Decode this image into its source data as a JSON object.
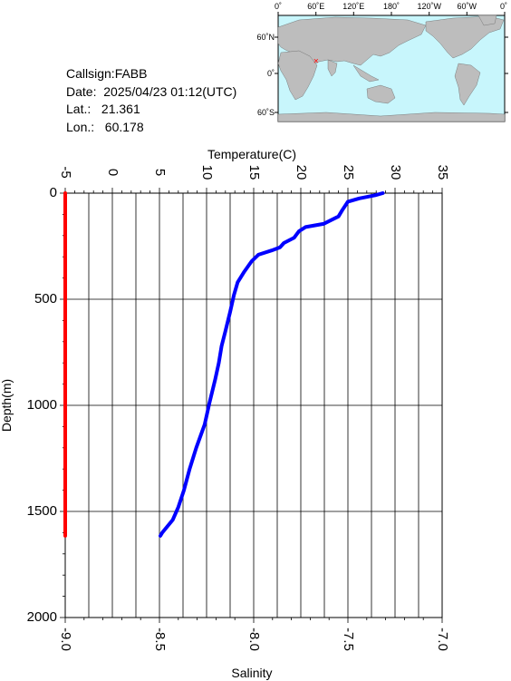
{
  "station": {
    "callsign": "Callsign:FABB",
    "date": "Date:  2025/04/23 01:12(UTC)",
    "lat": "Lat.:   21.361",
    "lon": "Lon.:   60.178"
  },
  "map": {
    "lon_labels": [
      "0˚",
      "60˚E",
      "120˚E",
      "180˚",
      "120˚W",
      "60˚W",
      "0˚"
    ],
    "lat_labels": [
      "60˚N",
      "0˚",
      "60˚S"
    ],
    "ocean_color": "#c8f6fc",
    "land_color": "#bdbdbd",
    "marker_color": "#ff0000",
    "marker": {
      "lon": 60.178,
      "lat": 21.361
    }
  },
  "chart_data": {
    "type": "line",
    "y_axis": {
      "label": "Depth(m)",
      "range": [
        0,
        2000
      ],
      "reversed": true,
      "ticks": [
        "0",
        "500",
        "1000",
        "1500",
        "2000"
      ]
    },
    "x_axis_top": {
      "label": "Temperature(C)",
      "range": [
        -5,
        35
      ],
      "ticks": [
        "-5",
        "0",
        "5",
        "10",
        "15",
        "20",
        "25",
        "30",
        "35"
      ]
    },
    "x_axis_bottom": {
      "label": "Salinity",
      "range": [
        -9.0,
        -7.0
      ],
      "ticks": [
        "-9.0",
        "-8.5",
        "-8.0",
        "-7.5",
        "-7.0"
      ]
    },
    "grid": true,
    "series": [
      {
        "axis": "temperature",
        "color": "#0000ff",
        "points": [
          {
            "x": 28.7,
            "y": 0
          },
          {
            "x": 27.9,
            "y": 10
          },
          {
            "x": 26.2,
            "y": 25
          },
          {
            "x": 25.0,
            "y": 40
          },
          {
            "x": 24.4,
            "y": 80
          },
          {
            "x": 24.0,
            "y": 110
          },
          {
            "x": 22.4,
            "y": 145
          },
          {
            "x": 20.5,
            "y": 160
          },
          {
            "x": 19.8,
            "y": 180
          },
          {
            "x": 19.3,
            "y": 210
          },
          {
            "x": 18.2,
            "y": 235
          },
          {
            "x": 17.8,
            "y": 255
          },
          {
            "x": 16.9,
            "y": 270
          },
          {
            "x": 15.5,
            "y": 290
          },
          {
            "x": 14.8,
            "y": 320
          },
          {
            "x": 14.0,
            "y": 370
          },
          {
            "x": 13.3,
            "y": 420
          },
          {
            "x": 12.9,
            "y": 480
          },
          {
            "x": 12.5,
            "y": 560
          },
          {
            "x": 12.0,
            "y": 650
          },
          {
            "x": 11.6,
            "y": 720
          },
          {
            "x": 11.3,
            "y": 800
          },
          {
            "x": 10.9,
            "y": 880
          },
          {
            "x": 10.3,
            "y": 990
          },
          {
            "x": 9.8,
            "y": 1090
          },
          {
            "x": 8.9,
            "y": 1200
          },
          {
            "x": 8.2,
            "y": 1300
          },
          {
            "x": 7.6,
            "y": 1400
          },
          {
            "x": 7.0,
            "y": 1480
          },
          {
            "x": 6.4,
            "y": 1540
          },
          {
            "x": 5.3,
            "y": 1600
          },
          {
            "x": 5.1,
            "y": 1615
          }
        ]
      },
      {
        "axis": "salinity",
        "color": "#ff0000",
        "points": [
          {
            "x": -9.0,
            "y": 0
          },
          {
            "x": -9.0,
            "y": 1615
          }
        ]
      }
    ]
  }
}
